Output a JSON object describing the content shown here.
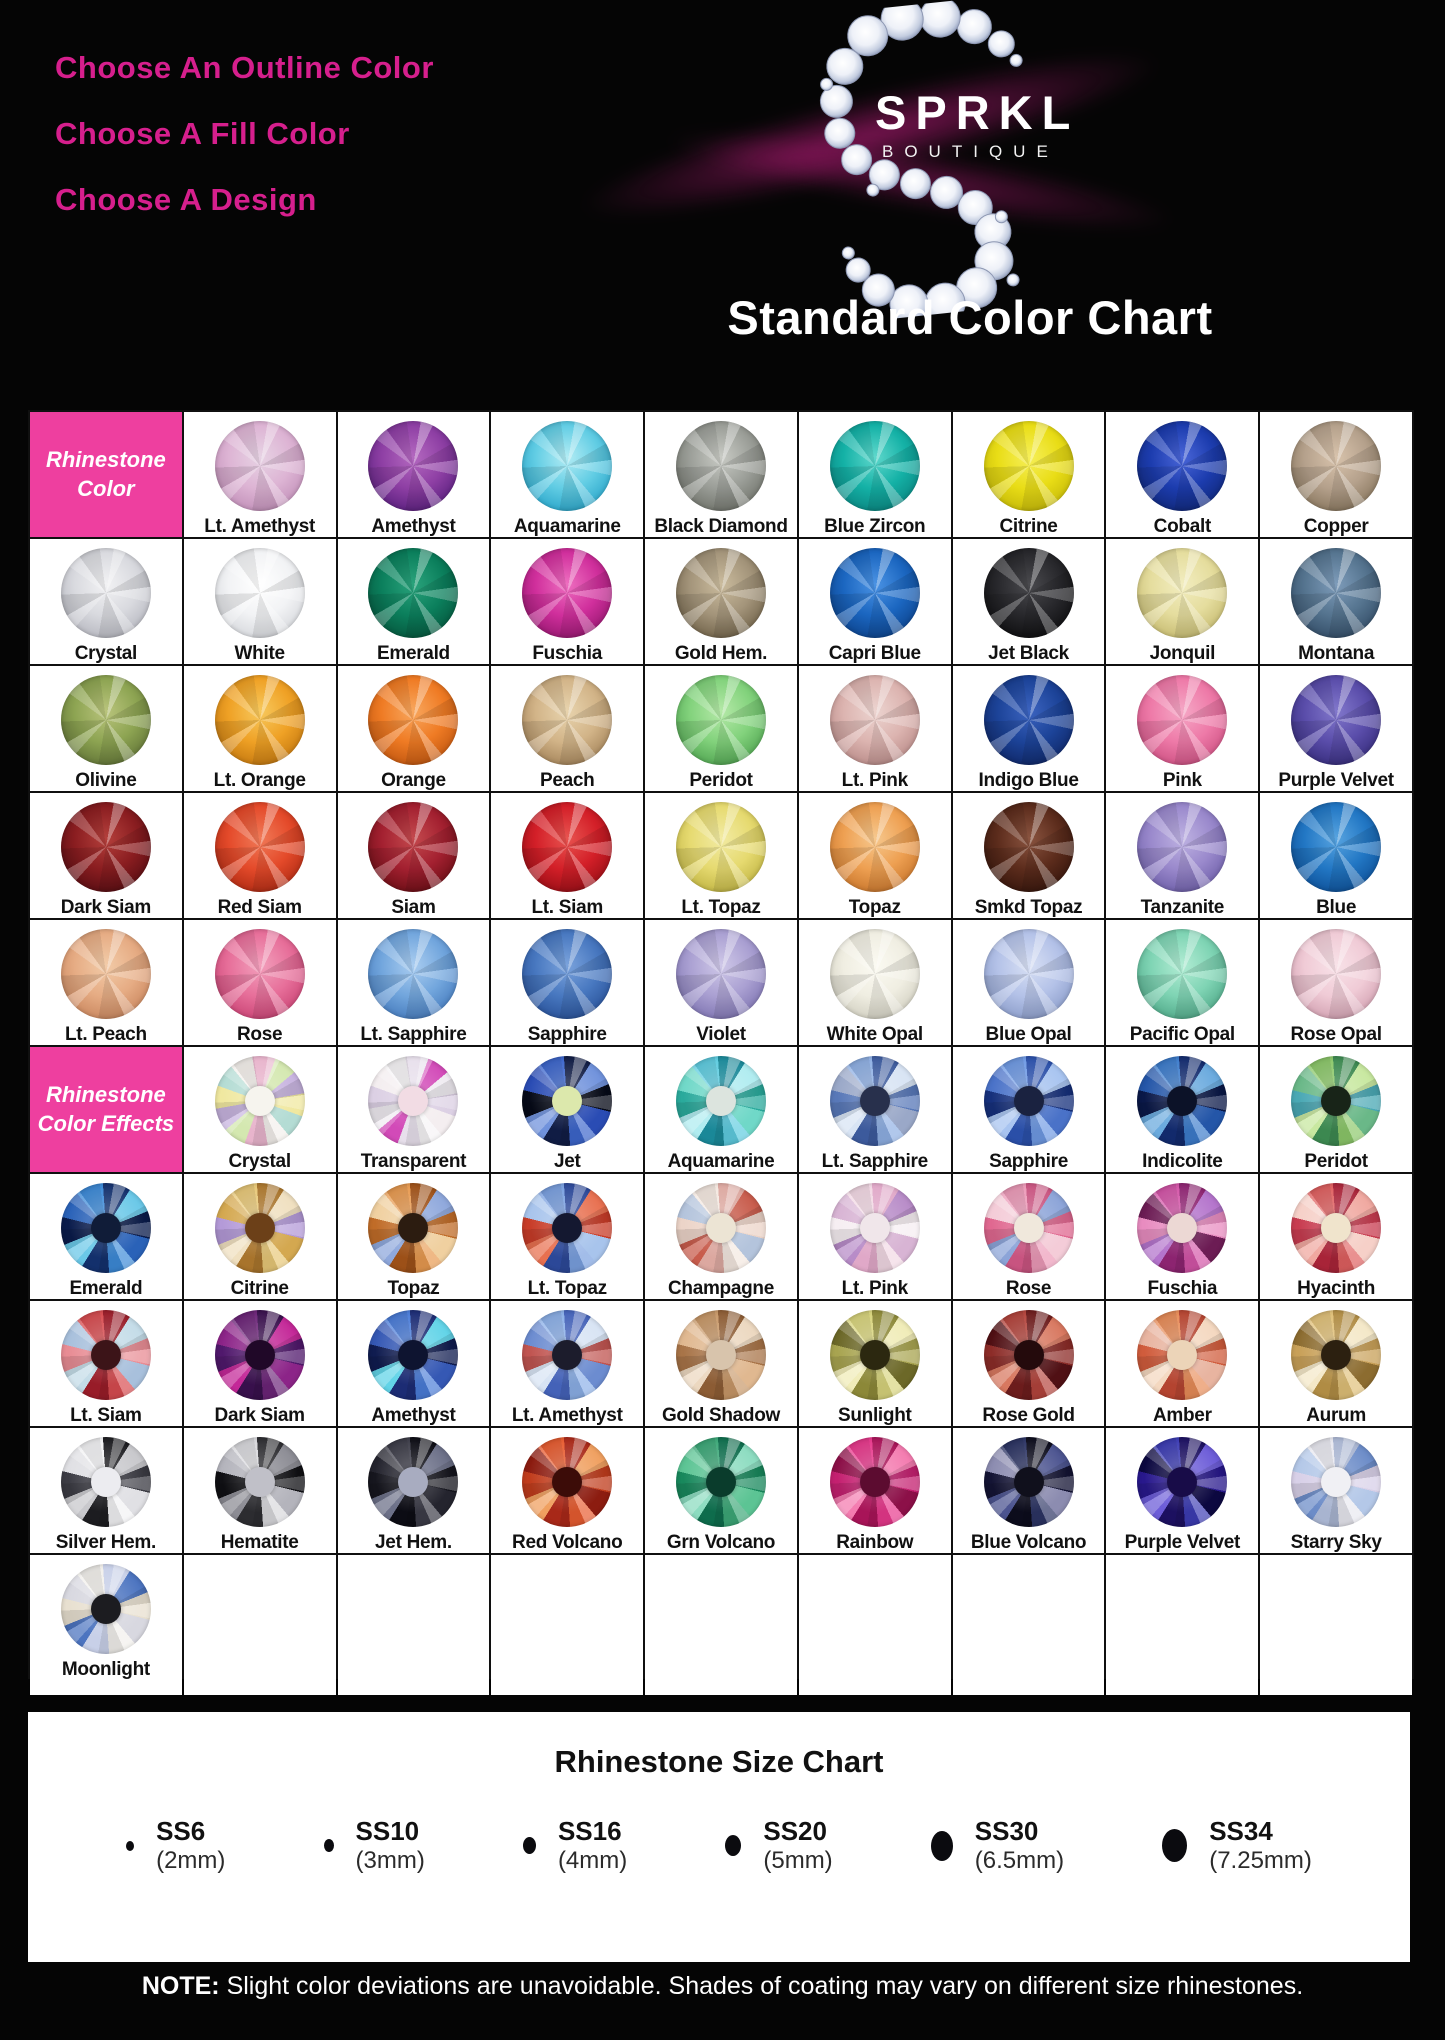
{
  "header": {
    "headings": [
      "Choose An Outline Color",
      "Choose A Fill Color",
      "Choose A Design"
    ],
    "brand": "SPRKL",
    "brand_sub": "BOUTIQUE",
    "title": "Standard Color Chart",
    "accent_pink": "#d61f8d",
    "cell_pink": "#ee3f9f"
  },
  "table": {
    "rows": [
      [
        {
          "type": "header",
          "label": "Rhinestone\nColor"
        },
        {
          "type": "gem",
          "label": "Lt. Amethyst",
          "base": [
            "#e7d3e4",
            "#ddb4d4",
            "#c493bb"
          ]
        },
        {
          "type": "gem",
          "label": "Amethyst",
          "base": [
            "#b469c0",
            "#8e3fa4",
            "#5f2382"
          ]
        },
        {
          "type": "gem",
          "label": "Aquamarine",
          "base": [
            "#b3ecf4",
            "#62cde4",
            "#2fa9cc"
          ]
        },
        {
          "type": "gem",
          "label": "Black Diamond",
          "base": [
            "#c9cbc5",
            "#9b9e98",
            "#74776f"
          ]
        },
        {
          "type": "gem",
          "label": "Blue Zircon",
          "base": [
            "#5fd8cc",
            "#14b1a6",
            "#0b8a84"
          ]
        },
        {
          "type": "gem",
          "label": "Citrine",
          "base": [
            "#f6ef5a",
            "#e9dd16",
            "#c8bc0a"
          ]
        },
        {
          "type": "gem",
          "label": "Cobalt",
          "base": [
            "#4a66d8",
            "#1c3cae",
            "#122a7e"
          ]
        },
        {
          "type": "gem",
          "label": "Copper",
          "base": [
            "#d8c3ac",
            "#b5a18c",
            "#8c7a62"
          ]
        }
      ],
      [
        {
          "type": "gem",
          "label": "Crystal",
          "base": [
            "#f2f2f4",
            "#d9dadf",
            "#b9bac2"
          ]
        },
        {
          "type": "gem",
          "label": "White",
          "base": [
            "#ffffff",
            "#f2f3f5",
            "#d8dade"
          ]
        },
        {
          "type": "gem",
          "label": "Emerald",
          "base": [
            "#2aa37c",
            "#0b7f5c",
            "#065a40"
          ]
        },
        {
          "type": "gem",
          "label": "Fuschia",
          "base": [
            "#ee6fc0",
            "#d02f9c",
            "#9c1a74"
          ]
        },
        {
          "type": "gem",
          "label": "Gold Hem.",
          "base": [
            "#cbbc9e",
            "#a3947a",
            "#75674e"
          ]
        },
        {
          "type": "gem",
          "label": "Capri Blue",
          "base": [
            "#4b93e4",
            "#1b66c0",
            "#0e4690"
          ]
        },
        {
          "type": "gem",
          "label": "Jet Black",
          "base": [
            "#4a4a4e",
            "#28282c",
            "#101012"
          ]
        },
        {
          "type": "gem",
          "label": "Jonquil",
          "base": [
            "#f2edc0",
            "#e5dd9e",
            "#c8bd74"
          ]
        },
        {
          "type": "gem",
          "label": "Montana",
          "base": [
            "#7e9cba",
            "#55748f",
            "#36506a"
          ]
        }
      ],
      [
        {
          "type": "gem",
          "label": "Olivine",
          "base": [
            "#b9c47c",
            "#8da452",
            "#66793a"
          ]
        },
        {
          "type": "gem",
          "label": "Lt. Orange",
          "base": [
            "#f7c95e",
            "#efa125",
            "#c87c12"
          ]
        },
        {
          "type": "gem",
          "label": "Orange",
          "base": [
            "#f8a75e",
            "#ef7b24",
            "#c55a12"
          ]
        },
        {
          "type": "gem",
          "label": "Peach",
          "base": [
            "#e8d4ae",
            "#d2b488",
            "#a8885e"
          ]
        },
        {
          "type": "gem",
          "label": "Peridot",
          "base": [
            "#b5e9a8",
            "#82d27c",
            "#55a855"
          ]
        },
        {
          "type": "gem",
          "label": "Lt. Pink",
          "base": [
            "#ecd4d0",
            "#dcb4b0",
            "#bc8f8c"
          ]
        },
        {
          "type": "gem",
          "label": "Indigo Blue",
          "base": [
            "#3c64c0",
            "#1c4398",
            "#112a6c"
          ]
        },
        {
          "type": "gem",
          "label": "Pink",
          "base": [
            "#f5a8c6",
            "#ee7aa8",
            "#d05586"
          ]
        },
        {
          "type": "gem",
          "label": "Purple Velvet",
          "base": [
            "#8278cc",
            "#5a4daa",
            "#3a3080"
          ]
        }
      ],
      [
        {
          "type": "gem",
          "label": "Dark Siam",
          "base": [
            "#b4403c",
            "#8a1d20",
            "#5c0f14"
          ]
        },
        {
          "type": "gem",
          "label": "Red Siam",
          "base": [
            "#f07a58",
            "#e44a2a",
            "#b42e16"
          ]
        },
        {
          "type": "gem",
          "label": "Siam",
          "base": [
            "#c44a4e",
            "#a32030",
            "#701018"
          ]
        },
        {
          "type": "gem",
          "label": "Lt. Siam",
          "base": [
            "#e85450",
            "#d31f28",
            "#9e1018"
          ]
        },
        {
          "type": "gem",
          "label": "Lt. Topaz",
          "base": [
            "#f2eba4",
            "#e6da70",
            "#c4b848"
          ]
        },
        {
          "type": "gem",
          "label": "Topaz",
          "base": [
            "#f6c88e",
            "#eea052",
            "#cc7a30"
          ]
        },
        {
          "type": "gem",
          "label": "Smkd Topaz",
          "base": [
            "#8a5440",
            "#5c2c1c",
            "#3a180e"
          ]
        },
        {
          "type": "gem",
          "label": "Tanzanite",
          "base": [
            "#beb2e2",
            "#9a89cc",
            "#7263ac"
          ]
        },
        {
          "type": "gem",
          "label": "Blue",
          "base": [
            "#58a4e0",
            "#2277c4",
            "#10549c"
          ]
        }
      ],
      [
        {
          "type": "gem",
          "label": "Lt. Peach",
          "base": [
            "#f2cba8",
            "#e6ac84",
            "#cc8a62"
          ]
        },
        {
          "type": "gem",
          "label": "Rose",
          "base": [
            "#f2a0bc",
            "#e76f9a",
            "#cc4878"
          ]
        },
        {
          "type": "gem",
          "label": "Lt. Sapphire",
          "base": [
            "#aacdf0",
            "#72a6dd",
            "#4a7fc0"
          ]
        },
        {
          "type": "gem",
          "label": "Sapphire",
          "base": [
            "#7ba3dc",
            "#4878c0",
            "#2c559c"
          ]
        },
        {
          "type": "gem",
          "label": "Violet",
          "base": [
            "#cfc8e8",
            "#aaa0d2",
            "#8278b4"
          ]
        },
        {
          "type": "gem",
          "label": "White Opal",
          "base": [
            "#fbfaf2",
            "#f0eee2",
            "#d4d2c4"
          ]
        },
        {
          "type": "gem",
          "label": "Blue Opal",
          "base": [
            "#d8e0f4",
            "#b4c2e8",
            "#8fa0cc"
          ]
        },
        {
          "type": "gem",
          "label": "Pacific Opal",
          "base": [
            "#b2ecd4",
            "#7fd4b4",
            "#54ac8c"
          ]
        },
        {
          "type": "gem",
          "label": "Rose Opal",
          "base": [
            "#f8e2e8",
            "#f0cbd6",
            "#d4a4b4"
          ]
        }
      ],
      [
        {
          "type": "header",
          "label": "Rhinestone\nColor Effects"
        },
        {
          "type": "gem",
          "label": "Crystal",
          "fx": [
            "#f4f0ec",
            "#e8b4cc",
            "#d4e8b0",
            "#c8b4e0",
            "#f0e8a0",
            "#b4dcd4"
          ],
          "center": "#f6f4ee"
        },
        {
          "type": "gem",
          "label": "Transparent",
          "fx": [
            "#f6f4f6",
            "#e8e0ec",
            "#d24ab8",
            "#f0ecf2",
            "#dcd0e4",
            "#f4eef0"
          ],
          "center": "#f2dce4"
        },
        {
          "type": "gem",
          "label": "Jet",
          "fx": [
            "#3c66cc",
            "#101c44",
            "#7092dc",
            "#060a18",
            "#2a4cb4"
          ],
          "center": "#dce8ac"
        },
        {
          "type": "gem",
          "label": "Aquamarine",
          "fx": [
            "#5ecce0",
            "#1a8898",
            "#b0ecf0",
            "#2aaa9c",
            "#70d8c8"
          ],
          "center": "#dce4de"
        },
        {
          "type": "gem",
          "label": "Lt. Sapphire",
          "fx": [
            "#8fb0e4",
            "#3c5a9c",
            "#d8e4f4",
            "#5878b8",
            "#9aa8c8"
          ],
          "center": "#28304c"
        },
        {
          "type": "gem",
          "label": "Sapphire",
          "fx": [
            "#6f9ae4",
            "#2a4fa8",
            "#a8c4f0",
            "#16307c",
            "#4a72c8"
          ],
          "center": "#1a2240"
        },
        {
          "type": "gem",
          "label": "Indicolite",
          "fx": [
            "#3c7ccc",
            "#122a6c",
            "#6aaade",
            "#0a1848",
            "#2456a8"
          ],
          "center": "#0c1228"
        },
        {
          "type": "gem",
          "label": "Peridot",
          "fx": [
            "#8cc86a",
            "#3c8850",
            "#c8e8a0",
            "#4aa8b4",
            "#6ab888"
          ],
          "center": "#182418"
        }
      ],
      [
        {
          "type": "gem",
          "label": "Emerald",
          "fx": [
            "#3c8ad8",
            "#13306c",
            "#6ac8e8",
            "#0a1c4c",
            "#2a62b8"
          ],
          "center": "#101c38"
        },
        {
          "type": "gem",
          "label": "Citrine",
          "fx": [
            "#e8c878",
            "#a8742c",
            "#f0e0c0",
            "#b49ad8",
            "#d4a850"
          ],
          "center": "#6c4018"
        },
        {
          "type": "gem",
          "label": "Topaz",
          "fx": [
            "#e89a50",
            "#9c5018",
            "#8fa8dc",
            "#c06c28",
            "#f0d0a0"
          ],
          "center": "#2c1c10"
        },
        {
          "type": "gem",
          "label": "Lt. Topaz",
          "fx": [
            "#7aa0e0",
            "#2c4898",
            "#e87050",
            "#c83c28",
            "#a8c4ec"
          ],
          "center": "#141830"
        },
        {
          "type": "gem",
          "label": "Champagne",
          "fx": [
            "#f4e8e0",
            "#dca8a0",
            "#c85c4c",
            "#ecd4c8",
            "#b4c4dc"
          ],
          "center": "#ece4d4"
        },
        {
          "type": "gem",
          "label": "Lt. Pink",
          "fx": [
            "#f2d8e4",
            "#e0a8c8",
            "#b88cc8",
            "#f6eef2",
            "#d8b4d4"
          ],
          "center": "#f0e6ea"
        },
        {
          "type": "gem",
          "label": "Rose",
          "fx": [
            "#ec9ab8",
            "#c85480",
            "#8ca4d8",
            "#e06890",
            "#f4ccd8"
          ],
          "center": "#f0e8dc"
        },
        {
          "type": "gem",
          "label": "Fuschia",
          "fx": [
            "#d455a8",
            "#8c2470",
            "#b474cc",
            "#e88cc0",
            "#6c1c54"
          ],
          "center": "#ecd8d4"
        },
        {
          "type": "gem",
          "label": "Hyacinth",
          "fx": [
            "#e06060",
            "#a82438",
            "#f0a8a0",
            "#c83c50",
            "#f6d0c8"
          ],
          "center": "#f0e4cc"
        }
      ],
      [
        {
          "type": "gem",
          "label": "Lt. Siam",
          "fx": [
            "#d84c50",
            "#981c28",
            "#c4dce8",
            "#e88c94",
            "#a8c0dc"
          ],
          "center": "#3c1418"
        },
        {
          "type": "gem",
          "label": "Dark Siam",
          "fx": [
            "#6c2478",
            "#38104c",
            "#c42898",
            "#50186c",
            "#8c2488"
          ],
          "center": "#200828"
        },
        {
          "type": "gem",
          "label": "Amethyst",
          "fx": [
            "#4a7cd8",
            "#1c2c74",
            "#62d4e8",
            "#101c50",
            "#3558b4"
          ],
          "center": "#0e1430"
        },
        {
          "type": "gem",
          "label": "Lt. Amethyst",
          "fx": [
            "#8cb0e8",
            "#4462b8",
            "#d8e4f4",
            "#c05450",
            "#6c8cd0"
          ],
          "center": "#1c1c2c"
        },
        {
          "type": "gem",
          "label": "Gold Shadow",
          "fx": [
            "#c89868",
            "#8c5c34",
            "#ecd8c0",
            "#a87448",
            "#e0b890"
          ],
          "center": "#d8c4ac"
        },
        {
          "type": "gem",
          "label": "Sunlight",
          "fx": [
            "#d8d47c",
            "#8c8838",
            "#f0ecb8",
            "#a8a450",
            "#6c6828"
          ],
          "center": "#2c2810"
        },
        {
          "type": "gem",
          "label": "Rose Gold",
          "fx": [
            "#b4443c",
            "#6c1c1c",
            "#d87860",
            "#8c2c28",
            "#501014"
          ],
          "center": "#240a0c"
        },
        {
          "type": "gem",
          "label": "Amber",
          "fx": [
            "#e88c58",
            "#b44430",
            "#f4d8c0",
            "#d05c3c",
            "#e8b4a0"
          ],
          "center": "#ecd4b8"
        },
        {
          "type": "gem",
          "label": "Aurum",
          "fx": [
            "#e0c078",
            "#b08c44",
            "#f4e8c8",
            "#c8a058",
            "#8c6c30"
          ],
          "center": "#2c2010"
        }
      ],
      [
        {
          "type": "gem",
          "label": "Silver Hem.",
          "fx": [
            "#f2f2f4",
            "#1c1c20",
            "#c8c8cc",
            "#3c3c44",
            "#e0e0e4"
          ],
          "center": "#ececf0"
        },
        {
          "type": "gem",
          "label": "Hematite",
          "fx": [
            "#d8d8dc",
            "#2c2c30",
            "#8c8c94",
            "#101014",
            "#b4b4bc"
          ],
          "center": "#c0c0c8"
        },
        {
          "type": "gem",
          "label": "Jet Hem.",
          "fx": [
            "#3c3c48",
            "#0c0c14",
            "#6c7088",
            "#16161e",
            "#24242e"
          ],
          "center": "#a8acc0"
        },
        {
          "type": "gem",
          "label": "Red Volcano",
          "fx": [
            "#e85c30",
            "#a82818",
            "#f0a060",
            "#c03c1c",
            "#8c1c10"
          ],
          "center": "#3c0c08"
        },
        {
          "type": "gem",
          "label": "Grn Volcano",
          "fx": [
            "#3ca878",
            "#0e6c4c",
            "#8cdcc0",
            "#18885c",
            "#5cc494"
          ],
          "center": "#0a3c2c"
        },
        {
          "type": "gem",
          "label": "Rainbow",
          "fx": [
            "#e8388c",
            "#a81458",
            "#f47cb0",
            "#c42070",
            "#8c1048"
          ],
          "center": "#5c0c30"
        },
        {
          "type": "gem",
          "label": "Blue Volcano",
          "fx": [
            "#2c3464",
            "#0c0c1c",
            "#4c5490",
            "#141434",
            "#8c8cb0"
          ],
          "center": "#10101c"
        },
        {
          "type": "gem",
          "label": "Purple Velvet",
          "fx": [
            "#3c3cb4",
            "#1c1060",
            "#6c5cd8",
            "#28188c",
            "#0c0840"
          ],
          "center": "#180c48"
        },
        {
          "type": "gem",
          "label": "Starry Sky",
          "fx": [
            "#e8e8f0",
            "#a8b4d0",
            "#6c8cc8",
            "#d8d0e8",
            "#b4c8e8"
          ],
          "center": "#f0f0f4"
        }
      ],
      [
        {
          "type": "gem",
          "label": "Moonlight",
          "fx": [
            "#f2f0ec",
            "#c8d0e8",
            "#4c74c0",
            "#e8e0d0",
            "#d8d8e0"
          ],
          "center": "#1c1c20"
        },
        {
          "type": "empty"
        },
        {
          "type": "empty"
        },
        {
          "type": "empty"
        },
        {
          "type": "empty"
        },
        {
          "type": "empty"
        },
        {
          "type": "empty"
        },
        {
          "type": "empty"
        },
        {
          "type": "empty"
        }
      ]
    ]
  },
  "size_chart": {
    "title": "Rhinestone Size Chart",
    "entries": [
      {
        "size": "SS6",
        "mm": "(2mm)",
        "dot_w": 8,
        "dot_h": 10
      },
      {
        "size": "SS10",
        "mm": "(3mm)",
        "dot_w": 10,
        "dot_h": 13
      },
      {
        "size": "SS16",
        "mm": "(4mm)",
        "dot_w": 13,
        "dot_h": 17
      },
      {
        "size": "SS20",
        "mm": "(5mm)",
        "dot_w": 16,
        "dot_h": 21
      },
      {
        "size": "SS30",
        "mm": "(6.5mm)",
        "dot_w": 22,
        "dot_h": 30
      },
      {
        "size": "SS34",
        "mm": "(7.25mm)",
        "dot_w": 25,
        "dot_h": 33
      }
    ]
  },
  "footer": {
    "note_label": "NOTE:",
    "note_text": " Slight color deviations are unavoidable. Shades of coating may vary on different size rhinestones."
  }
}
